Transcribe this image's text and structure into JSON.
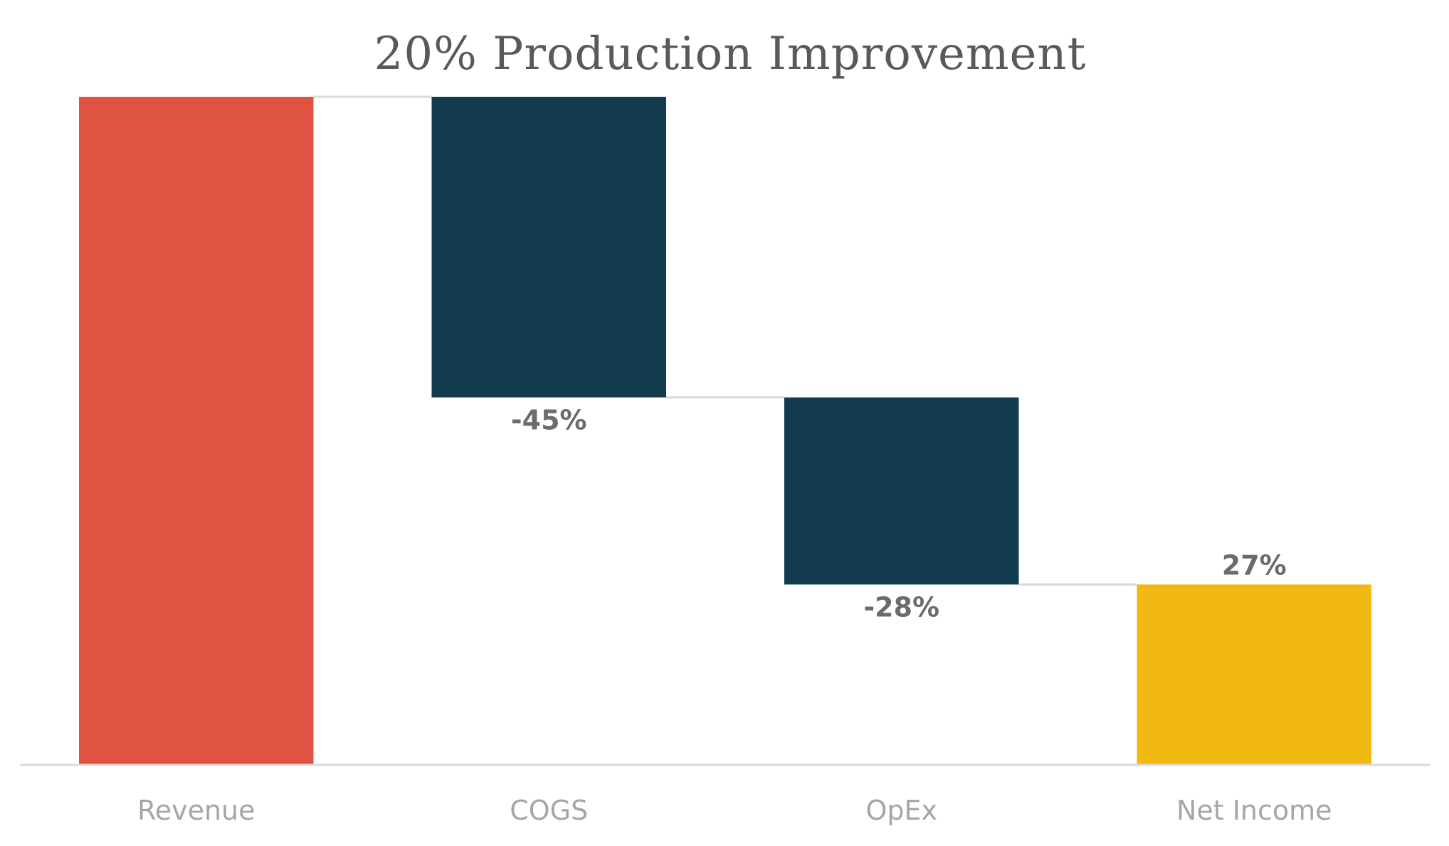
{
  "chart_data": {
    "type": "bar",
    "subtype": "waterfall",
    "title": "20% Production Improvement",
    "xlabel": "",
    "ylabel": "",
    "categories": [
      "Revenue",
      "COGS",
      "OpEx",
      "Net Income"
    ],
    "values": [
      100,
      -45,
      -28,
      27
    ],
    "data_labels": [
      "",
      "-45%",
      "-28%",
      "27%"
    ],
    "ylim": [
      0,
      100
    ],
    "grid": false,
    "legend": "none",
    "connectors": true,
    "colors": {
      "increase": "#E05343",
      "decrease": "#133B4E",
      "total": "#F1B911",
      "title": "#595959",
      "tick_label": "#A6A6A6",
      "data_label": "#6B6B6B",
      "axis": "#D9D9D9"
    }
  }
}
